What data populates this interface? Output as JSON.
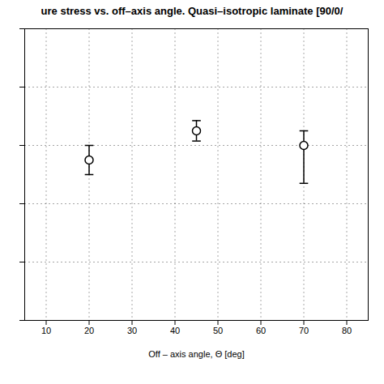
{
  "chart_data": {
    "type": "scatter",
    "title": "ure stress vs. off–axis angle. Quasi–isotropic laminate [90/0/",
    "xlabel": "Off – axis angle, Θ [deg]",
    "x": [
      20,
      45,
      70
    ],
    "values": [
      5.5,
      6.5,
      6.0
    ],
    "yerr_low": [
      0.5,
      0.35,
      1.3
    ],
    "yerr_high": [
      0.5,
      0.35,
      0.5
    ],
    "xlim": [
      5,
      85
    ],
    "ylim": [
      0,
      10
    ],
    "xticks": [
      10,
      20,
      30,
      40,
      50,
      60,
      70,
      80
    ],
    "yticks": [
      0,
      2,
      4,
      6,
      8,
      10
    ],
    "tick_labels": "x",
    "grid": true,
    "marker": "circle",
    "color": "black"
  }
}
